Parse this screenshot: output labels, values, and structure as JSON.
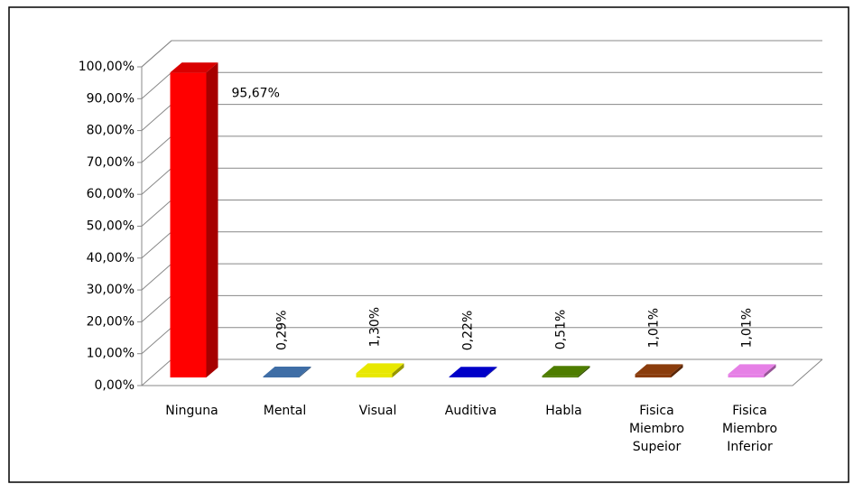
{
  "chart_data": {
    "type": "bar3d",
    "categories": [
      "Ninguna",
      "Mental",
      "Visual",
      "Auditiva",
      "Habla",
      "Fisica Miembro Supeior",
      "Fisica Miembro Inferior"
    ],
    "values": [
      95.67,
      0.29,
      1.3,
      0.22,
      0.51,
      1.01,
      1.01
    ],
    "value_labels": [
      "95,67%",
      "0,29%",
      "1,30%",
      "0,22%",
      "0,51%",
      "1,01%",
      "1,01%"
    ],
    "colors": [
      "#ff0000",
      "#3f6ea6",
      "#e8e800",
      "#0000c8",
      "#4e7d00",
      "#8a3c0c",
      "#e680e6"
    ],
    "ylim": [
      0,
      100
    ],
    "yticks": [
      {
        "value": 0,
        "label": "0,00%"
      },
      {
        "value": 10,
        "label": "10,00%"
      },
      {
        "value": 20,
        "label": "20,00%"
      },
      {
        "value": 30,
        "label": "30,00%"
      },
      {
        "value": 40,
        "label": "40,00%"
      },
      {
        "value": 50,
        "label": "50,00%"
      },
      {
        "value": 60,
        "label": "60,00%"
      },
      {
        "value": 70,
        "label": "70,00%"
      },
      {
        "value": 80,
        "label": "80,00%"
      },
      {
        "value": 90,
        "label": "90,00%"
      },
      {
        "value": 100,
        "label": "100,00%"
      }
    ],
    "grid": true
  }
}
